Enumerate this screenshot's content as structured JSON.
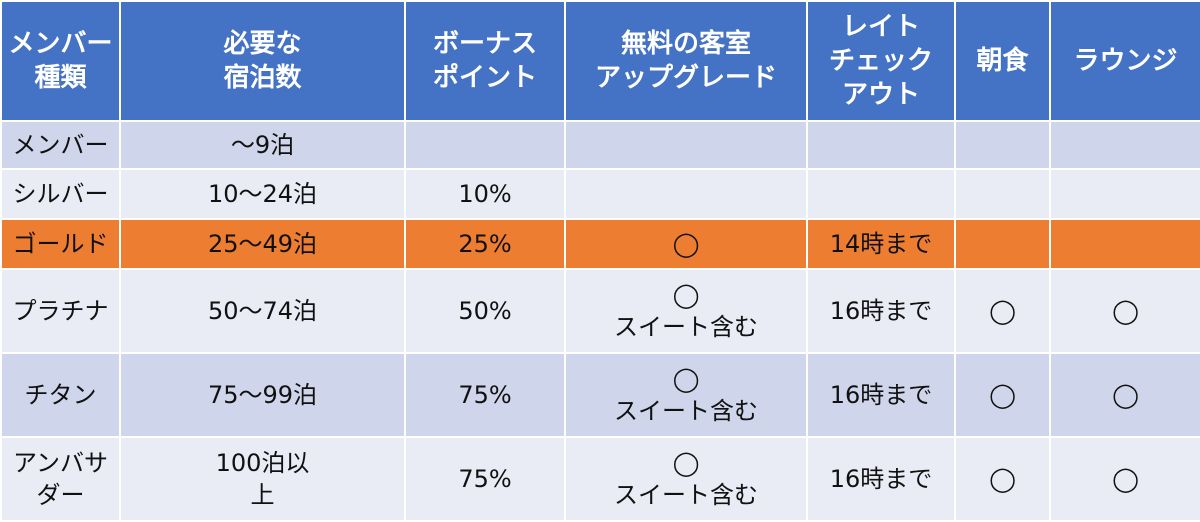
{
  "table": {
    "headers": [
      "メンバー種類",
      "必要な\n宿泊数",
      "ボーナス\nポイント",
      "無料の客室\nアップグレード",
      "レイト\nチェック\nアウト",
      "朝食",
      "ラウンジ"
    ],
    "rows": [
      [
        "メンバー",
        "〜9泊",
        "",
        "",
        "",
        "",
        ""
      ],
      [
        "シルバー",
        "10〜24泊",
        "10%",
        "",
        "",
        "",
        ""
      ],
      [
        "ゴールド",
        "25〜49泊",
        "25%",
        "◯",
        "14時まで",
        "",
        ""
      ],
      [
        "プラチナ",
        "50〜74泊",
        "50%",
        "◯\nスイート含む",
        "16時まで",
        "◯",
        "◯"
      ],
      [
        "チタン",
        "75〜99泊",
        "75%",
        "◯\nスイート含む",
        "16時まで",
        "◯",
        "◯"
      ],
      [
        "アンバサダー",
        "100泊以\n上",
        "75%",
        "◯\nスイート含む",
        "16時まで",
        "◯",
        "◯"
      ]
    ],
    "highlight_row": 2,
    "colors": {
      "header": "#4472c4",
      "row_dark": "#cfd5ea",
      "row_light": "#e9ebf5",
      "highlight": "#ed7d31"
    }
  }
}
